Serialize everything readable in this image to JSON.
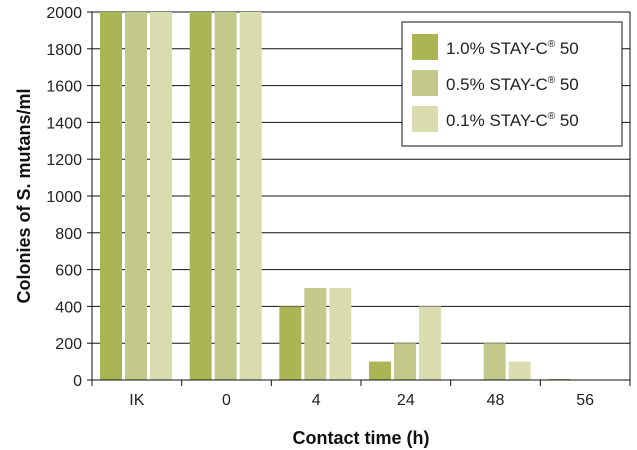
{
  "chart_data": {
    "type": "bar",
    "title": "",
    "xlabel": "Contact time (h)",
    "ylabel": "Colonies of S. mutans/ml",
    "categories": [
      "IK",
      "0",
      "4",
      "24",
      "48",
      "56"
    ],
    "ylim": [
      0,
      2000
    ],
    "yticks": [
      0,
      200,
      400,
      600,
      800,
      1000,
      1200,
      1400,
      1600,
      1800,
      2000
    ],
    "grid": true,
    "legend_position": "top-right",
    "series": [
      {
        "name": "1.0% STAY-C® 50",
        "color": "#aab553",
        "values": [
          2000,
          2000,
          400,
          100,
          0,
          5
        ]
      },
      {
        "name": "0.5% STAY-C® 50",
        "color": "#c3c98a",
        "values": [
          2000,
          2000,
          500,
          200,
          200,
          0
        ]
      },
      {
        "name": "0.1% STAY-C® 50",
        "color": "#d9dcae",
        "values": [
          2000,
          2000,
          500,
          400,
          100,
          0
        ]
      }
    ]
  }
}
